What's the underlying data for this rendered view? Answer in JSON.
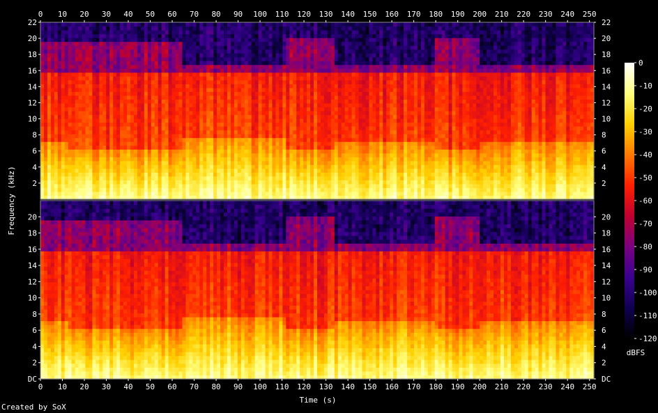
{
  "chart_data": {
    "type": "heatmap",
    "title": "",
    "xlabel": "Time (s)",
    "ylabel": "Frequency (kHz)",
    "colorbar_label": "dBFS",
    "x_range": [
      0,
      252
    ],
    "y_range": [
      0,
      22
    ],
    "x_ticks": [
      0,
      10,
      20,
      30,
      40,
      50,
      60,
      70,
      80,
      90,
      100,
      110,
      120,
      130,
      140,
      150,
      160,
      170,
      180,
      190,
      200,
      210,
      220,
      230,
      240,
      250
    ],
    "y_ticks_top": [
      "2",
      "4",
      "6",
      "8",
      "10",
      "12",
      "14",
      "16",
      "18",
      "20",
      "22"
    ],
    "y_ticks_bottom": [
      "DC",
      "2",
      "4",
      "6",
      "8",
      "10",
      "12",
      "14",
      "16",
      "18",
      "20"
    ],
    "colorbar_range": [
      -120,
      0
    ],
    "colorbar_ticks": [
      "0",
      "-10",
      "-20",
      "-30",
      "-40",
      "-50",
      "-60",
      "-70",
      "-80",
      "-90",
      "-100",
      "-110",
      "-120"
    ],
    "colormap": [
      "#000000",
      "#100050",
      "#3a0090",
      "#7a0080",
      "#c00030",
      "#ff2000",
      "#ff7a00",
      "#ffd000",
      "#ffff80",
      "#ffffff"
    ],
    "channels": 2,
    "segments": [
      {
        "t0": 0,
        "t1": 12,
        "bandwidth_khz": 19.5,
        "loud_band_khz": 7
      },
      {
        "t0": 12,
        "t1": 64,
        "bandwidth_khz": 19.5,
        "loud_band_khz": 6
      },
      {
        "t0": 64,
        "t1": 112,
        "bandwidth_khz": 16.5,
        "loud_band_khz": 7.5
      },
      {
        "t0": 112,
        "t1": 134,
        "bandwidth_khz": 20,
        "loud_band_khz": 6
      },
      {
        "t0": 134,
        "t1": 180,
        "bandwidth_khz": 16.5,
        "loud_band_khz": 7
      },
      {
        "t0": 180,
        "t1": 200,
        "bandwidth_khz": 20,
        "loud_band_khz": 6
      },
      {
        "t0": 200,
        "t1": 252,
        "bandwidth_khz": 16.5,
        "loud_band_khz": 7
      }
    ]
  },
  "credit": "Created by SoX"
}
